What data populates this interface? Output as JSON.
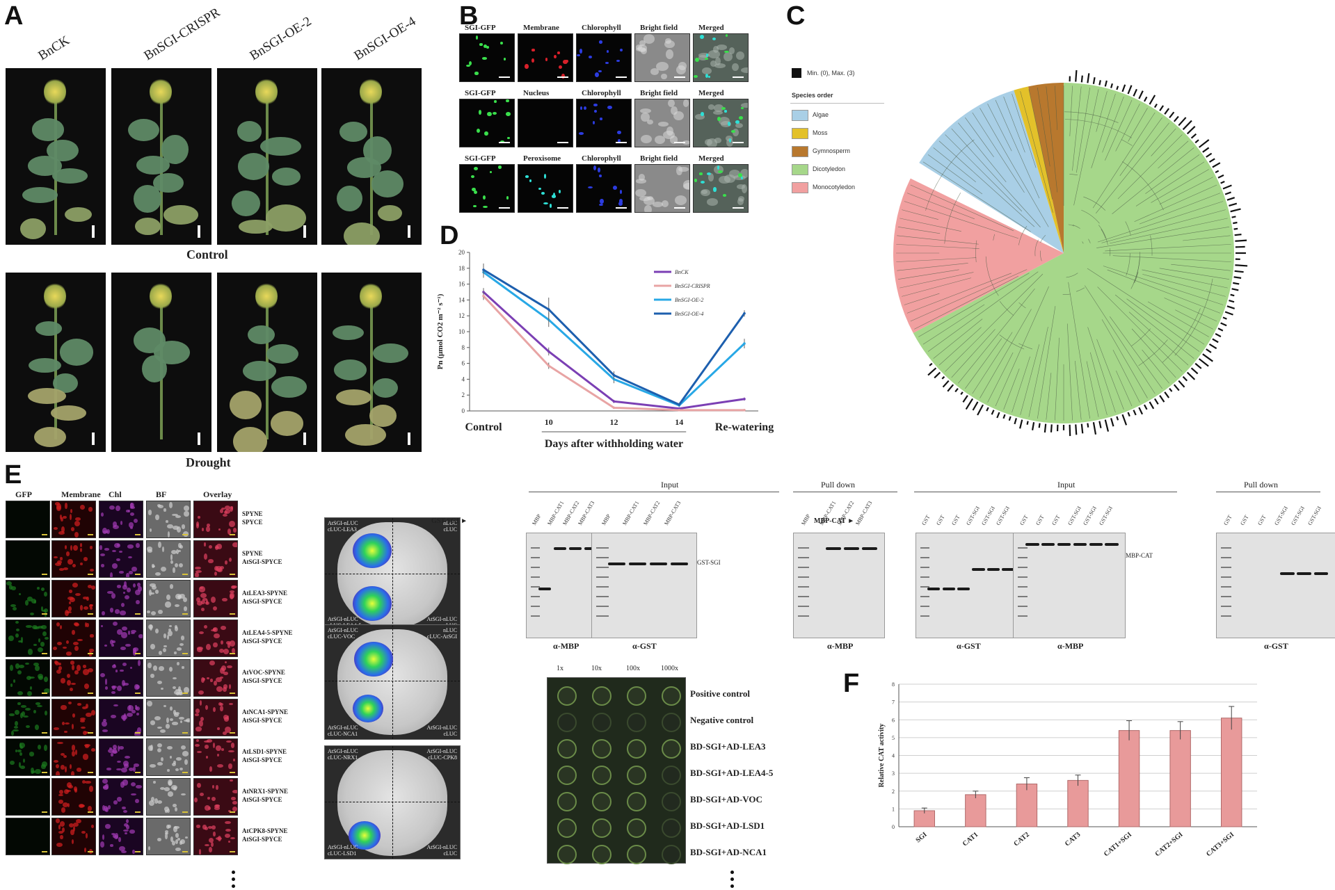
{
  "panels": {
    "A": {
      "label": "A",
      "columns": [
        "BnCK",
        "BnSGI-CRISPR",
        "BnSGI-OE-2",
        "BnSGI-OE-4"
      ],
      "rows": [
        "Control",
        "Drought"
      ]
    },
    "B": {
      "label": "B",
      "rows": [
        [
          "SGI-GFP",
          "Membrane",
          "Chlorophyll",
          "Bright field",
          "Merged"
        ],
        [
          "SGI-GFP",
          "Nucleus",
          "Chlorophyll",
          "Bright field",
          "Merged"
        ],
        [
          "SGI-GFP",
          "Peroxisome",
          "Chlorophyll",
          "Bright field",
          "Merged"
        ]
      ]
    },
    "C": {
      "label": "C",
      "legend_title": "Species order",
      "legend_minmax": "Min. (0), Max. (3)",
      "groups": [
        {
          "name": "Algae",
          "color": "#a9cfe6"
        },
        {
          "name": "Moss",
          "color": "#e3c12a"
        },
        {
          "name": "Gymnosperm",
          "color": "#b8782e"
        },
        {
          "name": "Dicotyledon",
          "color": "#a6d78a"
        },
        {
          "name": "Monocotyledon",
          "color": "#f1a0a0"
        }
      ]
    },
    "D": {
      "label": "D"
    },
    "E": {
      "label": "E",
      "headers": [
        "GFP",
        "Membrane",
        "Chl",
        "BF",
        "Overlay"
      ],
      "row_labels": [
        [
          "SPYNE",
          "SPYCE"
        ],
        [
          "SPYNE",
          "AtSGI-SPYCE"
        ],
        [
          "AtLEA3-SPYNE",
          "AtSGI-SPYCE"
        ],
        [
          "AtLEA4-5-SPYNE",
          "AtSGI-SPYCE"
        ],
        [
          "AtVOC-SPYNE",
          "AtSGI-SPYCE"
        ],
        [
          "AtNCA1-SPYNE",
          "AtSGI-SPYCE"
        ],
        [
          "AtLSD1-SPYNE",
          "AtSGI-SPYCE"
        ],
        [
          "AtNRX1-SPYNE",
          "AtSGI-SPYCE"
        ],
        [
          "AtCPK8-SPYNE",
          "AtSGI-SPYCE"
        ]
      ],
      "leaves": [
        {
          "tl": "AtSGI-nLUC\ncLUC-LEA3",
          "tr": "nLUC\ncLUC",
          "bl": "AtSGI-nLUC\ncLUC-LEA4-5",
          "br": "AtSGI-nLUC\ncLUC"
        },
        {
          "tl": "AtSGI-nLUC\ncLUC-VOC",
          "tr": "nLUC\ncLUC-AtSGI",
          "bl": "AtSGI-nLUC\ncLUC-NCA1",
          "br": "AtSGI-nLUC\ncLUC"
        },
        {
          "tl": "AtSGI-nLUC\ncLUC-NRX1",
          "tr": "AtSGI-nLUC\ncLUC-CPK8",
          "bl": "AtSGI-nLUC\ncLUC-LSD1",
          "br": "AtSGI-nLUC\ncLUC"
        }
      ]
    },
    "F": {
      "label": "F"
    }
  },
  "pulldown": {
    "left": {
      "probe": "GST-SGI",
      "input_title": "Input",
      "pull_title": "Pull down",
      "input_lanes1": [
        "MBP",
        "MBP-CAT1",
        "MBP-CAT2",
        "MBP-CAT3"
      ],
      "input_lanes2": [
        "MBP",
        "MBP-CAT1",
        "MBP-CAT2",
        "MBP-CAT3"
      ],
      "pull_lanes": [
        "MBP",
        "MBP-CAT1",
        "MBP-CAT2",
        "MBP-CAT3"
      ],
      "gel_labels": [
        "α-MBP",
        "α-GST",
        "α-MBP"
      ],
      "band_label": "GST-SGI"
    },
    "right": {
      "probe": "MBP-CAT",
      "input_title": "Input",
      "pull_title": "Pull down",
      "input_lanes1": [
        "GST",
        "GST",
        "GST",
        "GST-SGI",
        "GST-SGI",
        "GST-SGI"
      ],
      "input_lanes2": [
        "GST",
        "GST",
        "GST",
        "GST-SGI",
        "GST-SGI",
        "GST-SGI"
      ],
      "pull_lanes": [
        "GST",
        "GST",
        "GST",
        "GST-SGI",
        "GST-SGI",
        "GST-SGI"
      ],
      "gel_labels": [
        "α-GST",
        "α-MBP",
        "α-GST"
      ],
      "band_label": "MBP-CAT"
    }
  },
  "yeast": {
    "dilutions": [
      "1x",
      "10x",
      "100x",
      "1000x"
    ],
    "rows": [
      "Positive control",
      "Negative control",
      "BD-SGI+AD-LEA3",
      "BD-SGI+AD-LEA4-5",
      "BD-SGI+AD-VOC",
      "BD-SGI+AD-LSD1",
      "BD-SGI+AD-NCA1"
    ]
  },
  "chart_data": [
    {
      "panel": "D",
      "type": "line",
      "x": [
        "Control",
        "10",
        "12",
        "14",
        "Re-watering"
      ],
      "xlabel": "Days after withholding water",
      "ylabel": "Pn (μmol CO2 m⁻² s⁻¹)",
      "ylim": [
        0,
        20
      ],
      "yticks": [
        0,
        2,
        4,
        6,
        8,
        10,
        12,
        14,
        16,
        18,
        20
      ],
      "legend_position": "top-right",
      "series": [
        {
          "name": "BnCK",
          "color": "#7b3fb4",
          "values": [
            15.0,
            7.5,
            1.2,
            0.3,
            1.5
          ],
          "errors": [
            0.5,
            0.5,
            0.2,
            0.1,
            0.2
          ]
        },
        {
          "name": "BnSGI-CRISPR",
          "color": "#e8a4a4",
          "values": [
            14.5,
            5.7,
            0.4,
            0.1,
            0.1
          ],
          "errors": [
            0.5,
            0.4,
            0.1,
            0.1,
            0.1
          ]
        },
        {
          "name": "BnSGI-OE-2",
          "color": "#28a8e6",
          "values": [
            17.5,
            11.5,
            4.0,
            0.7,
            8.5
          ],
          "errors": [
            0.7,
            0.9,
            0.5,
            0.2,
            0.6
          ]
        },
        {
          "name": "BnSGI-OE-4",
          "color": "#1d5fae",
          "values": [
            17.8,
            12.8,
            4.5,
            0.8,
            12.3
          ],
          "errors": [
            0.8,
            1.5,
            0.5,
            0.2,
            0.4
          ]
        }
      ]
    },
    {
      "panel": "F",
      "type": "bar",
      "categories": [
        "SGI",
        "CAT1",
        "CAT2",
        "CAT3",
        "CAT1+SGI",
        "CAT2+SGI",
        "CAT3+SGI"
      ],
      "values": [
        0.9,
        1.8,
        2.4,
        2.6,
        5.4,
        5.4,
        6.1
      ],
      "errors": [
        0.15,
        0.2,
        0.35,
        0.3,
        0.55,
        0.5,
        0.65
      ],
      "ylabel": "Relative CAT activity",
      "ylim": [
        0,
        8
      ],
      "yticks": [
        0,
        1,
        2,
        3,
        4,
        5,
        6,
        7,
        8
      ],
      "bar_color": "#e89a9a",
      "grid": true
    }
  ]
}
